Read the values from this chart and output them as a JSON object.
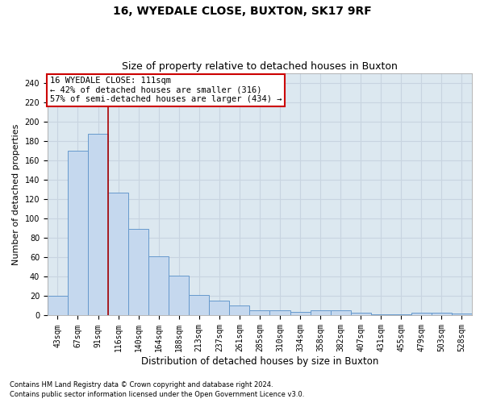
{
  "title": "16, WYEDALE CLOSE, BUXTON, SK17 9RF",
  "subtitle": "Size of property relative to detached houses in Buxton",
  "xlabel": "Distribution of detached houses by size in Buxton",
  "ylabel": "Number of detached properties",
  "categories": [
    "43sqm",
    "67sqm",
    "91sqm",
    "116sqm",
    "140sqm",
    "164sqm",
    "188sqm",
    "213sqm",
    "237sqm",
    "261sqm",
    "285sqm",
    "310sqm",
    "334sqm",
    "358sqm",
    "382sqm",
    "407sqm",
    "431sqm",
    "455sqm",
    "479sqm",
    "503sqm",
    "528sqm"
  ],
  "values": [
    20,
    170,
    187,
    127,
    89,
    61,
    41,
    21,
    15,
    10,
    5,
    5,
    4,
    5,
    5,
    3,
    1,
    1,
    3,
    3,
    2
  ],
  "bar_color": "#c5d8ee",
  "bar_edgecolor": "#6699cc",
  "bar_linewidth": 0.7,
  "grid_color": "#c8d4e0",
  "bg_color": "#dce8f0",
  "vline_color": "#aa0000",
  "vline_pos": 2.5,
  "annotation_text": "16 WYEDALE CLOSE: 111sqm\n← 42% of detached houses are smaller (316)\n57% of semi-detached houses are larger (434) →",
  "annotation_box_edgecolor": "#cc0000",
  "annotation_box_facecolor": "#ffffff",
  "fig_bg_color": "#ffffff",
  "ylim": [
    0,
    250
  ],
  "yticks": [
    0,
    20,
    40,
    60,
    80,
    100,
    120,
    140,
    160,
    180,
    200,
    220,
    240
  ],
  "footnote1": "Contains HM Land Registry data © Crown copyright and database right 2024.",
  "footnote2": "Contains public sector information licensed under the Open Government Licence v3.0.",
  "title_fontsize": 10,
  "subtitle_fontsize": 9,
  "tick_fontsize": 7,
  "ylabel_fontsize": 8,
  "xlabel_fontsize": 8.5,
  "ann_fontsize": 7.5
}
